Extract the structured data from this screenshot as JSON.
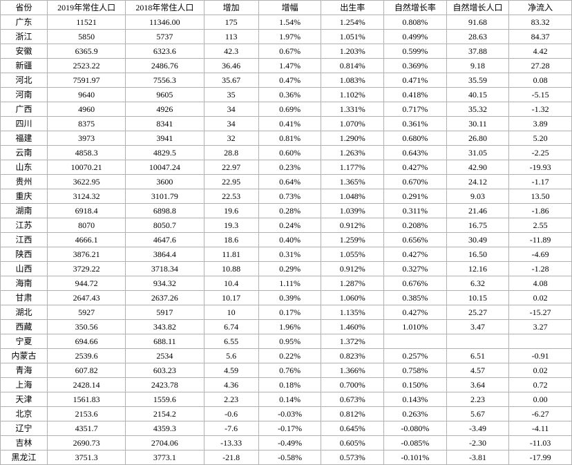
{
  "table": {
    "columns": [
      "省份",
      "2019年常住人口",
      "2018年常住人口",
      "增加",
      "增幅",
      "出生率",
      "自然增长率",
      "自然增长人口",
      "净流入"
    ],
    "rows": [
      [
        "广东",
        "11521",
        "11346.00",
        "175",
        "1.54%",
        "1.254%",
        "0.808%",
        "91.68",
        "83.32"
      ],
      [
        "浙江",
        "5850",
        "5737",
        "113",
        "1.97%",
        "1.051%",
        "0.499%",
        "28.63",
        "84.37"
      ],
      [
        "安徽",
        "6365.9",
        "6323.6",
        "42.3",
        "0.67%",
        "1.203%",
        "0.599%",
        "37.88",
        "4.42"
      ],
      [
        "新疆",
        "2523.22",
        "2486.76",
        "36.46",
        "1.47%",
        "0.814%",
        "0.369%",
        "9.18",
        "27.28"
      ],
      [
        "河北",
        "7591.97",
        "7556.3",
        "35.67",
        "0.47%",
        "1.083%",
        "0.471%",
        "35.59",
        "0.08"
      ],
      [
        "河南",
        "9640",
        "9605",
        "35",
        "0.36%",
        "1.102%",
        "0.418%",
        "40.15",
        "-5.15"
      ],
      [
        "广西",
        "4960",
        "4926",
        "34",
        "0.69%",
        "1.331%",
        "0.717%",
        "35.32",
        "-1.32"
      ],
      [
        "四川",
        "8375",
        "8341",
        "34",
        "0.41%",
        "1.070%",
        "0.361%",
        "30.11",
        "3.89"
      ],
      [
        "福建",
        "3973",
        "3941",
        "32",
        "0.81%",
        "1.290%",
        "0.680%",
        "26.80",
        "5.20"
      ],
      [
        "云南",
        "4858.3",
        "4829.5",
        "28.8",
        "0.60%",
        "1.263%",
        "0.643%",
        "31.05",
        "-2.25"
      ],
      [
        "山东",
        "10070.21",
        "10047.24",
        "22.97",
        "0.23%",
        "1.177%",
        "0.427%",
        "42.90",
        "-19.93"
      ],
      [
        "贵州",
        "3622.95",
        "3600",
        "22.95",
        "0.64%",
        "1.365%",
        "0.670%",
        "24.12",
        "-1.17"
      ],
      [
        "重庆",
        "3124.32",
        "3101.79",
        "22.53",
        "0.73%",
        "1.048%",
        "0.291%",
        "9.03",
        "13.50"
      ],
      [
        "湖南",
        "6918.4",
        "6898.8",
        "19.6",
        "0.28%",
        "1.039%",
        "0.311%",
        "21.46",
        "-1.86"
      ],
      [
        "江苏",
        "8070",
        "8050.7",
        "19.3",
        "0.24%",
        "0.912%",
        "0.208%",
        "16.75",
        "2.55"
      ],
      [
        "江西",
        "4666.1",
        "4647.6",
        "18.6",
        "0.40%",
        "1.259%",
        "0.656%",
        "30.49",
        "-11.89"
      ],
      [
        "陕西",
        "3876.21",
        "3864.4",
        "11.81",
        "0.31%",
        "1.055%",
        "0.427%",
        "16.50",
        "-4.69"
      ],
      [
        "山西",
        "3729.22",
        "3718.34",
        "10.88",
        "0.29%",
        "0.912%",
        "0.327%",
        "12.16",
        "-1.28"
      ],
      [
        "海南",
        "944.72",
        "934.32",
        "10.4",
        "1.11%",
        "1.287%",
        "0.676%",
        "6.32",
        "4.08"
      ],
      [
        "甘肃",
        "2647.43",
        "2637.26",
        "10.17",
        "0.39%",
        "1.060%",
        "0.385%",
        "10.15",
        "0.02"
      ],
      [
        "湖北",
        "5927",
        "5917",
        "10",
        "0.17%",
        "1.135%",
        "0.427%",
        "25.27",
        "-15.27"
      ],
      [
        "西藏",
        "350.56",
        "343.82",
        "6.74",
        "1.96%",
        "1.460%",
        "1.010%",
        "3.47",
        "3.27"
      ],
      [
        "宁夏",
        "694.66",
        "688.11",
        "6.55",
        "0.95%",
        "1.372%",
        "",
        "",
        ""
      ],
      [
        "内蒙古",
        "2539.6",
        "2534",
        "5.6",
        "0.22%",
        "0.823%",
        "0.257%",
        "6.51",
        "-0.91"
      ],
      [
        "青海",
        "607.82",
        "603.23",
        "4.59",
        "0.76%",
        "1.366%",
        "0.758%",
        "4.57",
        "0.02"
      ],
      [
        "上海",
        "2428.14",
        "2423.78",
        "4.36",
        "0.18%",
        "0.700%",
        "0.150%",
        "3.64",
        "0.72"
      ],
      [
        "天津",
        "1561.83",
        "1559.6",
        "2.23",
        "0.14%",
        "0.673%",
        "0.143%",
        "2.23",
        "0.00"
      ],
      [
        "北京",
        "2153.6",
        "2154.2",
        "-0.6",
        "-0.03%",
        "0.812%",
        "0.263%",
        "5.67",
        "-6.27"
      ],
      [
        "辽宁",
        "4351.7",
        "4359.3",
        "-7.6",
        "-0.17%",
        "0.645%",
        "-0.080%",
        "-3.49",
        "-4.11"
      ],
      [
        "吉林",
        "2690.73",
        "2704.06",
        "-13.33",
        "-0.49%",
        "0.605%",
        "-0.085%",
        "-2.30",
        "-11.03"
      ],
      [
        "黑龙江",
        "3751.3",
        "3773.1",
        "-21.8",
        "-0.58%",
        "0.573%",
        "-0.101%",
        "-3.81",
        "-17.99"
      ]
    ],
    "border_color": "#b0b0b0",
    "background_color": "#ffffff",
    "font_size": 12,
    "font_family": "SimSun"
  }
}
